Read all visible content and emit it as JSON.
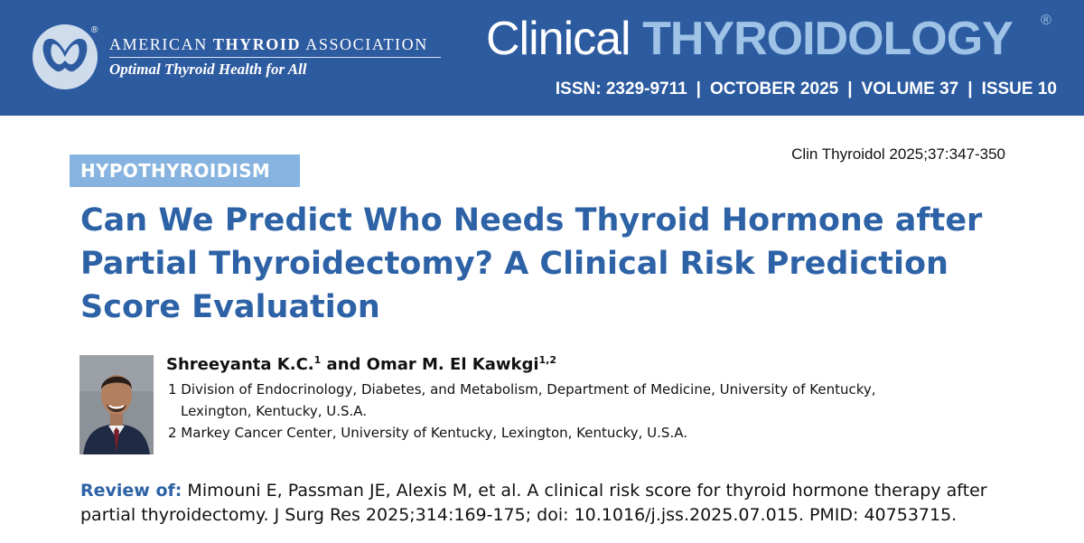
{
  "header": {
    "org_name_prefix": "AMERICAN ",
    "org_name_bold": "THYROID",
    "org_name_suffix": " ASSOCIATION",
    "org_tagline": "Optimal Thyroid Health for All",
    "registered_mark": "®",
    "journal_part1": "Clinical ",
    "journal_part2": "THYROIDOLOGY",
    "issn": "ISSN: 2329-9711",
    "date": "OCTOBER 2025",
    "volume": "VOLUME 37",
    "issue": "ISSUE 10",
    "separator": "|",
    "colors": {
      "banner": "#2d5ba0",
      "accent": "#9fc3e6"
    }
  },
  "article": {
    "citation": "Clin Thyroidol 2025;37:347-350",
    "category": "HYPOTHYROIDISM",
    "title_lines": [
      "Can We Predict Who Needs Thyroid Hormone after",
      "Partial Thyroidectomy? A Clinical Risk Prediction",
      "Score Evaluation"
    ],
    "author1": "Shreeyanta K.C.",
    "author1_sup": "1",
    "author_join": " and ",
    "author2": "Omar M. El Kawkgi",
    "author2_sup": "1,2",
    "affiliation1_line1": "1 Division of Endocrinology, Diabetes, and Metabolism, Department of Medicine, University of Kentucky,",
    "affiliation1_line2": "Lexington, Kentucky, U.S.A.",
    "affiliation2": "2 Markey Cancer Center, University of Kentucky, Lexington, Kentucky, U.S.A.",
    "review_label": "Review of:",
    "review_line1": " Mimouni E, Passman JE, Alexis M, et al. A clinical risk score for thyroid hormone therapy after",
    "review_line2": "partial thyroidectomy. J Surg Res 2025;314:169-175; doi: 10.1016/j.jss.2025.07.015. PMID: 40753715.",
    "colors": {
      "title": "#2d62a6",
      "category_bg": "#86b3df"
    }
  }
}
